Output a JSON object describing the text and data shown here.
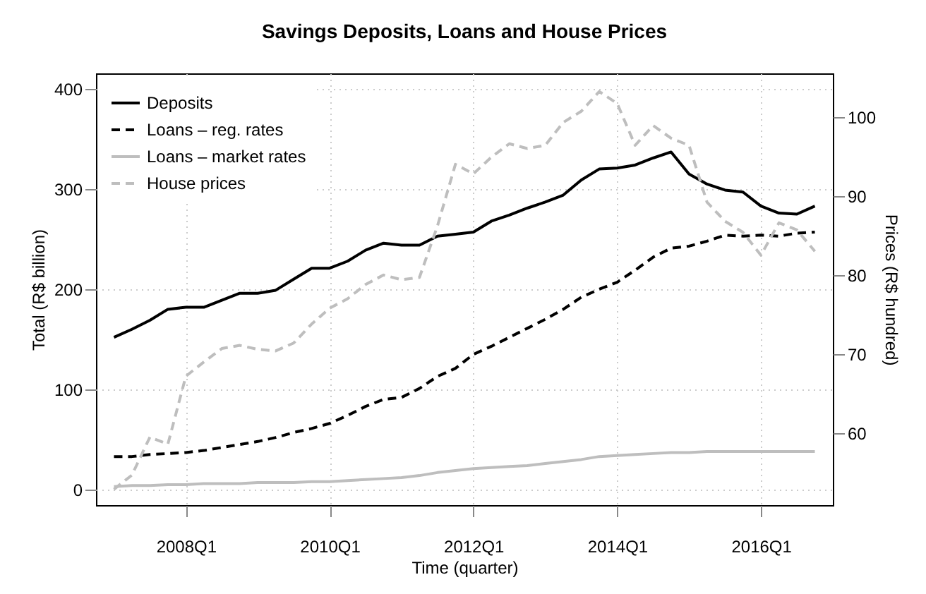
{
  "chart_data": {
    "type": "line",
    "title": "Savings Deposits, Loans and House Prices",
    "xlabel": "Time (quarter)",
    "ylabel": "Total (R$ billion)",
    "y2label": "Prices (R$ hundred)",
    "categories": [
      null,
      null,
      null,
      null,
      "2008Q1",
      null,
      null,
      null,
      null,
      null,
      null,
      null,
      "2010Q1",
      null,
      null,
      null,
      null,
      null,
      null,
      null,
      "2012Q1",
      null,
      null,
      null,
      null,
      null,
      null,
      null,
      "2014Q1",
      null,
      null,
      null,
      null,
      null,
      null,
      null,
      "2016Q1",
      null,
      null,
      null
    ],
    "series": [
      {
        "name": "Deposits",
        "color": "#000000",
        "line_style": "solid",
        "values": [
          152,
          160,
          169,
          180,
          182,
          182,
          189,
          196,
          196,
          199,
          210,
          221,
          221,
          228,
          239,
          246,
          244,
          244,
          253,
          255,
          257,
          268,
          274,
          281,
          287,
          294,
          309,
          320,
          321,
          324,
          331,
          337,
          315,
          305,
          299,
          297,
          283,
          276,
          275,
          283
        ]
      },
      {
        "name": "Loans – reg. rates",
        "color": "#000000",
        "line_style": "dashed",
        "values": [
          33,
          33,
          35,
          36,
          37,
          39,
          42,
          45,
          48,
          52,
          57,
          61,
          66,
          74,
          83,
          90,
          92,
          101,
          113,
          121,
          135,
          143,
          152,
          161,
          170,
          180,
          192,
          200,
          207,
          219,
          232,
          241,
          243,
          248,
          254,
          253,
          254,
          253,
          256,
          257
        ]
      },
      {
        "name": "Loans – market rates",
        "color": "#bebebe",
        "line_style": "solid",
        "values": [
          3,
          4,
          4,
          5,
          5,
          6,
          6,
          6,
          7,
          7,
          7,
          8,
          8,
          9,
          10,
          11,
          12,
          14,
          17,
          19,
          21,
          22,
          23,
          24,
          26,
          28,
          30,
          33,
          34,
          35,
          36,
          37,
          37,
          38,
          38,
          38,
          38,
          38,
          38,
          38
        ]
      },
      {
        "name": "House prices",
        "color": "#bebebe",
        "line_style": "dashed",
        "axis": "y2",
        "values": [
          52.9,
          54.7,
          59.5,
          58.6,
          67.2,
          69.0,
          70.7,
          71.1,
          70.6,
          70.4,
          71.4,
          73.8,
          75.8,
          77.0,
          78.8,
          80.0,
          79.4,
          79.7,
          86.2,
          94.0,
          92.8,
          94.9,
          96.6,
          96.0,
          96.4,
          99.3,
          100.7,
          103.2,
          101.7,
          96.4,
          98.9,
          97.3,
          96.4,
          89.2,
          86.8,
          85.4,
          82.5,
          86.6,
          85.7,
          83.0
        ]
      }
    ],
    "ylim": [
      -15.5,
      415.5
    ],
    "yticks": [
      0,
      100,
      200,
      300,
      400
    ],
    "y2lim": [
      50.9,
      105.5
    ],
    "y2ticks": [
      60,
      70,
      80,
      90,
      100
    ],
    "grid": true,
    "legend": "top left",
    "marker": "none"
  }
}
